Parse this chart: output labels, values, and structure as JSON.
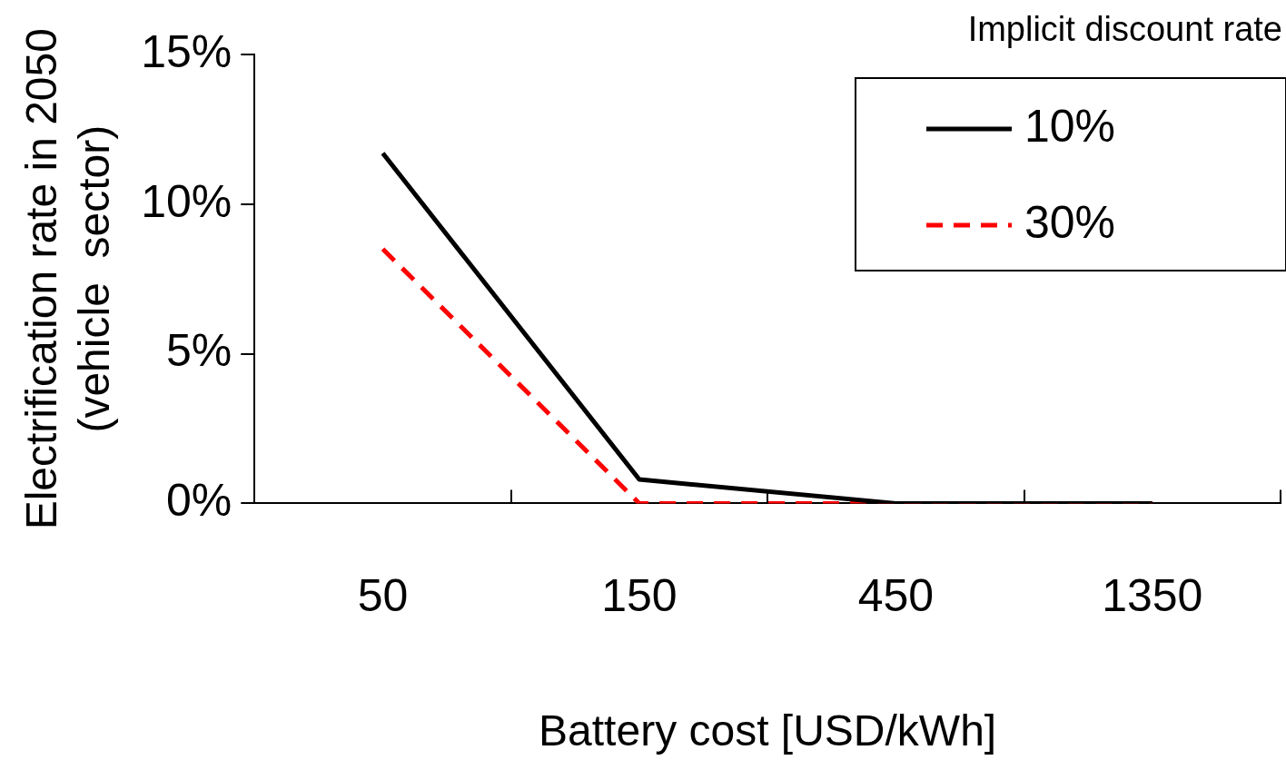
{
  "chart_data": {
    "type": "line",
    "xlabel": "Battery cost [USD/kWh]",
    "ylabel": "Electrification rate in 2050\n(vehicle  sector)",
    "legend_title": "Implicit discount rate",
    "categories": [
      "50",
      "150",
      "450",
      "1350"
    ],
    "series": [
      {
        "name": "10%",
        "color": "#000000",
        "line_style": "solid",
        "values": [
          11.7,
          0.8,
          0,
          0
        ]
      },
      {
        "name": "30%",
        "color": "#ff0000",
        "line_style": "dashed",
        "values": [
          8.5,
          0,
          0,
          0
        ]
      }
    ],
    "ylim": [
      0,
      15
    ],
    "yticks": [
      {
        "value": 0,
        "label": "0%"
      },
      {
        "value": 5,
        "label": "5%"
      },
      {
        "value": 10,
        "label": "10%"
      },
      {
        "value": 15,
        "label": "15%"
      }
    ],
    "grid": false,
    "legend": "top right",
    "marker": "none"
  }
}
